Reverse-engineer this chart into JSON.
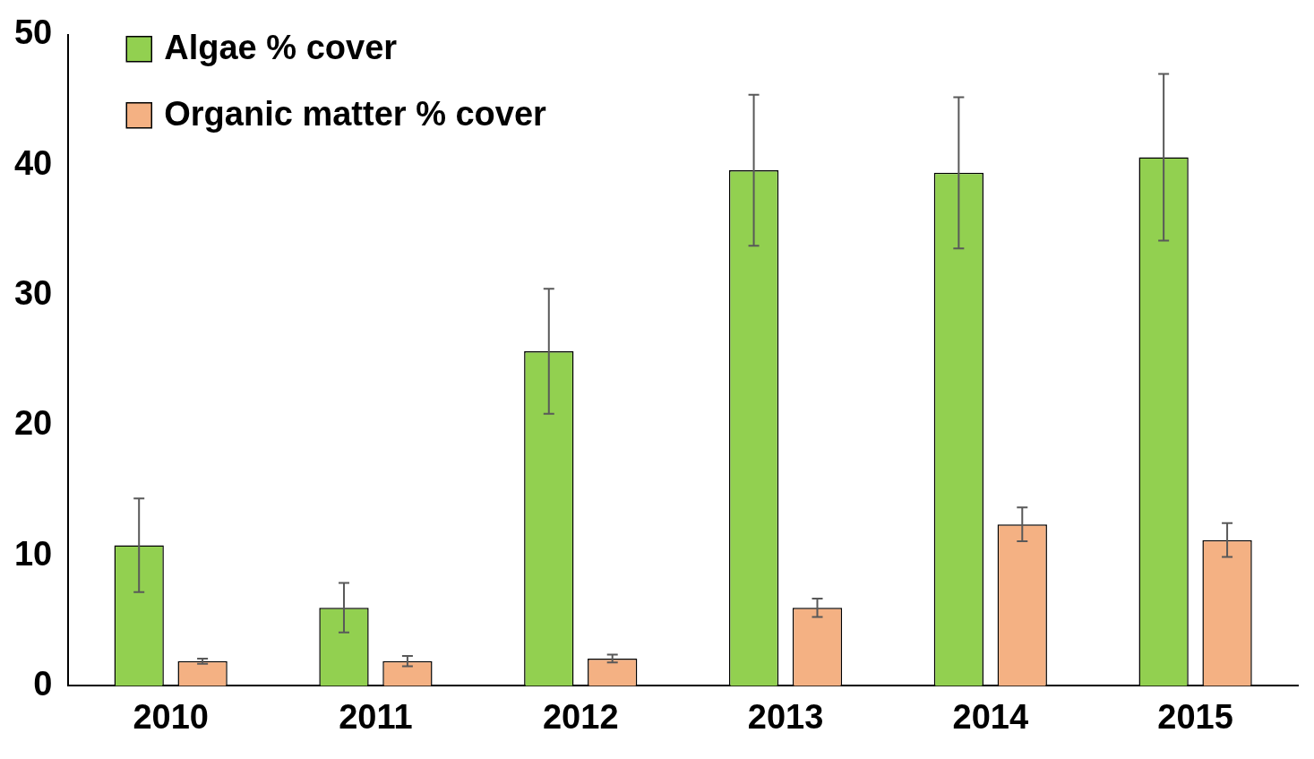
{
  "chart_data": {
    "type": "bar",
    "categories": [
      "2010",
      "2011",
      "2012",
      "2013",
      "2014",
      "2015"
    ],
    "series": [
      {
        "name": "Algae % cover",
        "color": "#92d050",
        "values": [
          10.8,
          6.0,
          25.7,
          39.6,
          39.4,
          40.6
        ],
        "errors": [
          3.6,
          1.9,
          4.8,
          5.8,
          5.8,
          6.4
        ]
      },
      {
        "name": "Organic matter % cover",
        "color": "#f4b183",
        "values": [
          1.9,
          1.9,
          2.1,
          6.0,
          12.4,
          11.2
        ],
        "errors": [
          0.2,
          0.4,
          0.3,
          0.7,
          1.3,
          1.3
        ]
      }
    ],
    "ylim": [
      0,
      50
    ],
    "yticks": [
      0,
      10,
      20,
      30,
      40,
      50
    ],
    "grid": false,
    "legend": "top left"
  }
}
